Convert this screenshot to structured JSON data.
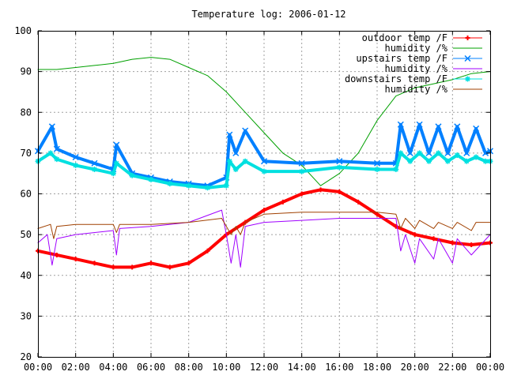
{
  "chart_data": {
    "type": "line",
    "title": "Temperature log: 2006-01-12",
    "xlabel": "",
    "ylabel": "",
    "xlim": [
      "00:00",
      "24:00"
    ],
    "ylim": [
      20,
      100
    ],
    "grid": true,
    "legend_position": "top-right",
    "x_tick_labels": [
      "00:00",
      "02:00",
      "04:00",
      "06:00",
      "08:00",
      "10:00",
      "12:00",
      "14:00",
      "16:00",
      "18:00",
      "20:00",
      "22:00",
      "00:00"
    ],
    "y_tick_labels": [
      "20",
      "30",
      "40",
      "50",
      "60",
      "70",
      "80",
      "90",
      "100"
    ],
    "series": [
      {
        "name": "outdoor temp /F",
        "color": "#ff0000",
        "marker": "plus",
        "x": [
          "00:00",
          "01:00",
          "02:00",
          "03:00",
          "04:00",
          "05:00",
          "06:00",
          "07:00",
          "08:00",
          "09:00",
          "10:00",
          "11:00",
          "12:00",
          "13:00",
          "14:00",
          "15:00",
          "16:00",
          "17:00",
          "18:00",
          "19:00",
          "20:00",
          "21:00",
          "22:00",
          "23:00",
          "24:00"
        ],
        "values": [
          46,
          45,
          44,
          43,
          42,
          42,
          43,
          42,
          43,
          46,
          50,
          53,
          56,
          58,
          60,
          61,
          60.5,
          58,
          55,
          52,
          50,
          49,
          48,
          47.5,
          48
        ]
      },
      {
        "name": "humidity /%",
        "color": "#00a000",
        "marker": "none",
        "x": [
          "00:00",
          "01:00",
          "02:00",
          "03:00",
          "04:00",
          "05:00",
          "06:00",
          "07:00",
          "08:00",
          "09:00",
          "10:00",
          "11:00",
          "12:00",
          "13:00",
          "14:00",
          "15:00",
          "16:00",
          "17:00",
          "18:00",
          "19:00",
          "20:00",
          "21:00",
          "22:00",
          "23:00",
          "24:00"
        ],
        "values": [
          90.5,
          90.5,
          91,
          91.5,
          92,
          93,
          93.5,
          93,
          91,
          89,
          85,
          80,
          75,
          70,
          67,
          62,
          65,
          70,
          78,
          84,
          86,
          87,
          88,
          89.5,
          90
        ]
      },
      {
        "name": "upstairs temp /F",
        "color": "#0080ff",
        "marker": "cross",
        "x": [
          "00:00",
          "00:45",
          "01:00",
          "02:00",
          "03:00",
          "04:00",
          "04:10",
          "05:00",
          "06:00",
          "07:00",
          "08:00",
          "09:00",
          "10:00",
          "10:10",
          "10:30",
          "11:00",
          "12:00",
          "14:00",
          "16:00",
          "18:00",
          "19:00",
          "19:15",
          "19:45",
          "20:15",
          "20:45",
          "21:15",
          "21:45",
          "22:15",
          "22:45",
          "23:15",
          "23:45",
          "24:00"
        ],
        "values": [
          70.5,
          76.5,
          71,
          69,
          67.5,
          66,
          72,
          65,
          64,
          63,
          62.5,
          62,
          64,
          74.5,
          70,
          75.5,
          68,
          67.5,
          68,
          67.5,
          67.5,
          77,
          70,
          77,
          70,
          76.5,
          70,
          76.5,
          70,
          76,
          70,
          70.5
        ]
      },
      {
        "name": "humidity /%",
        "color": "#a000ff",
        "marker": "none",
        "x": [
          "00:00",
          "00:30",
          "00:45",
          "01:00",
          "02:00",
          "04:00",
          "04:10",
          "04:20",
          "06:00",
          "08:00",
          "09:45",
          "10:00",
          "10:15",
          "10:30",
          "10:45",
          "11:00",
          "12:00",
          "14:00",
          "16:00",
          "18:00",
          "19:00",
          "19:15",
          "19:30",
          "20:00",
          "20:15",
          "21:00",
          "21:15",
          "22:00",
          "22:15",
          "23:00",
          "24:00"
        ],
        "values": [
          48,
          50,
          42.5,
          49,
          50,
          51,
          45,
          51.5,
          52,
          53,
          56,
          50,
          43,
          50,
          42,
          52,
          53,
          53.5,
          54,
          54,
          54,
          46,
          50,
          43,
          49,
          44,
          49,
          43,
          49,
          45,
          50
        ]
      },
      {
        "name": "downstairs temp /F",
        "color": "#00e0e0",
        "marker": "star",
        "x": [
          "00:00",
          "00:40",
          "01:00",
          "02:00",
          "03:00",
          "04:00",
          "04:10",
          "05:00",
          "06:00",
          "07:00",
          "08:00",
          "09:00",
          "10:00",
          "10:10",
          "10:30",
          "11:00",
          "12:00",
          "14:00",
          "16:00",
          "18:00",
          "19:00",
          "19:15",
          "19:45",
          "20:15",
          "20:45",
          "21:15",
          "21:45",
          "22:15",
          "22:45",
          "23:15",
          "23:45",
          "24:00"
        ],
        "values": [
          68,
          70,
          68.5,
          67,
          66,
          65,
          67.5,
          64.5,
          63.5,
          62.5,
          62,
          61.5,
          62,
          68,
          66,
          68,
          65.5,
          65.5,
          66.5,
          66,
          66,
          70,
          68,
          70,
          68,
          70,
          68,
          69.5,
          68,
          69,
          68,
          68
        ]
      },
      {
        "name": "humidity /%",
        "color": "#a04000",
        "marker": "none",
        "x": [
          "00:00",
          "00:40",
          "00:50",
          "01:00",
          "02:00",
          "04:00",
          "04:10",
          "04:20",
          "06:00",
          "08:00",
          "09:45",
          "10:00",
          "10:15",
          "10:30",
          "10:45",
          "11:00",
          "12:00",
          "14:00",
          "16:00",
          "18:00",
          "19:00",
          "19:15",
          "19:30",
          "20:00",
          "20:15",
          "21:00",
          "21:15",
          "22:00",
          "22:15",
          "23:00",
          "23:15",
          "24:00"
        ],
        "values": [
          51.5,
          52.5,
          49,
          52,
          52.5,
          52.5,
          50.5,
          52.5,
          52.5,
          53,
          54,
          52,
          50,
          52,
          50,
          53,
          55,
          55.5,
          55.5,
          55.5,
          55,
          51.5,
          54,
          51.5,
          53.5,
          51.5,
          53,
          51.5,
          53,
          51,
          53,
          53
        ]
      }
    ]
  }
}
